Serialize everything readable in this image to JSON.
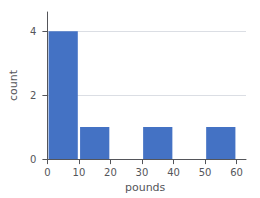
{
  "chart_data": {
    "type": "bar",
    "xlabel": "pounds",
    "ylabel": "count",
    "x": [
      5,
      15,
      35,
      55
    ],
    "values": [
      4,
      1,
      1,
      1
    ],
    "color": "#4472c4",
    "xlim": [
      -1,
      63
    ],
    "ylim": [
      0,
      4.6
    ],
    "xticks": [
      0,
      10,
      20,
      30,
      40,
      50,
      60
    ],
    "yticks": [
      0,
      2,
      4
    ],
    "grid": true
  }
}
